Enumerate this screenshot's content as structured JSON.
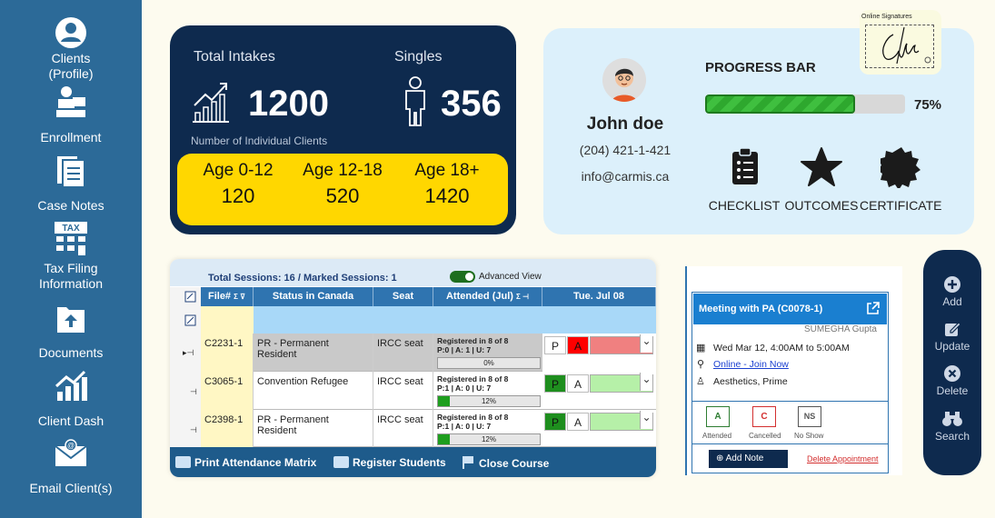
{
  "sidebar": {
    "items": [
      {
        "label": "Clients\n(Profile)",
        "icon": "user-circle-icon"
      },
      {
        "label": "Enrollment",
        "icon": "enrollment-icon"
      },
      {
        "label": "Case Notes",
        "icon": "case-notes-icon"
      },
      {
        "label": "Tax Filing\nInformation",
        "icon": "tax-icon"
      },
      {
        "label": "Documents",
        "icon": "documents-icon"
      },
      {
        "label": "Client Dash",
        "icon": "chart-icon"
      },
      {
        "label": "Email Client(s)",
        "icon": "email-icon"
      }
    ]
  },
  "stats": {
    "total_label": "Total Intakes",
    "total_value": "1200",
    "singles_label": "Singles",
    "singles_value": "356",
    "sub_label": "Number of Individual Clients",
    "ages": [
      {
        "label": "Age 0-12",
        "value": "120"
      },
      {
        "label": "Age 12-18",
        "value": "520"
      },
      {
        "label": "Age 18+",
        "value": "1420"
      }
    ]
  },
  "profile": {
    "name": "John doe",
    "phone": "(204) 421-1-421",
    "email": "info@carmis.ca",
    "progress_title": "PROGRESS BAR",
    "progress_value": 0.75,
    "progress_label": "75%",
    "badges": [
      "CHECKLIST",
      "OUTCOMES",
      "CERTIFICATE"
    ],
    "signature_caption": "Online Signatures"
  },
  "attendance": {
    "summary": "Total Sessions: 16 / Marked Sessions: 1",
    "advanced_view": "Advanced View",
    "columns": [
      "File#",
      "Status in Canada",
      "Seat",
      "Attended (Jul)",
      "Tue. Jul 08"
    ],
    "rows": [
      {
        "file": "C2231-1",
        "status": "PR - Permanent Resident",
        "seat": "IRCC seat",
        "reg": "Registered in 8 of 8",
        "counts": "P:0 | A: 1 | U: 7",
        "pct": 0,
        "pct_label": "0%",
        "mark": "A"
      },
      {
        "file": "C3065-1",
        "status": "Convention Refugee",
        "seat": "IRCC seat",
        "reg": "Registered in 8 of 8",
        "counts": "P:1 | A: 0 | U: 7",
        "pct": 0.12,
        "pct_label": "12%",
        "mark": "P"
      },
      {
        "file": "C2398-1",
        "status": "PR - Permanent Resident",
        "seat": "IRCC seat",
        "reg": "Registered in 8 of 8",
        "counts": "P:1 | A: 0 | U: 7",
        "pct": 0.12,
        "pct_label": "12%",
        "mark": "P"
      }
    ],
    "p_label": "P",
    "a_label": "A",
    "footer": [
      "Print Attendance Matrix",
      "Register Students",
      "Close Course"
    ]
  },
  "appointment": {
    "title": "Meeting with PA (C0078-1)",
    "staff": "SUMEGHA Gupta",
    "when": "Wed Mar 12, 4:00AM to 5:00AM",
    "link": "Online - Join Now",
    "service": "Aesthetics, Prime",
    "statuses": [
      {
        "code": "A",
        "label": "Attended",
        "color": "#2e7d32"
      },
      {
        "code": "C",
        "label": "Cancelled",
        "color": "#d32f2f"
      },
      {
        "code": "NS",
        "label": "No Show",
        "color": "#555555"
      }
    ],
    "add_note": "Add Note",
    "delete": "Delete Appointment"
  },
  "actions": [
    {
      "label": "Add",
      "icon": "plus-circle-icon"
    },
    {
      "label": "Update",
      "icon": "edit-icon"
    },
    {
      "label": "Delete",
      "icon": "x-circle-icon"
    },
    {
      "label": "Search",
      "icon": "binoculars-icon"
    }
  ]
}
